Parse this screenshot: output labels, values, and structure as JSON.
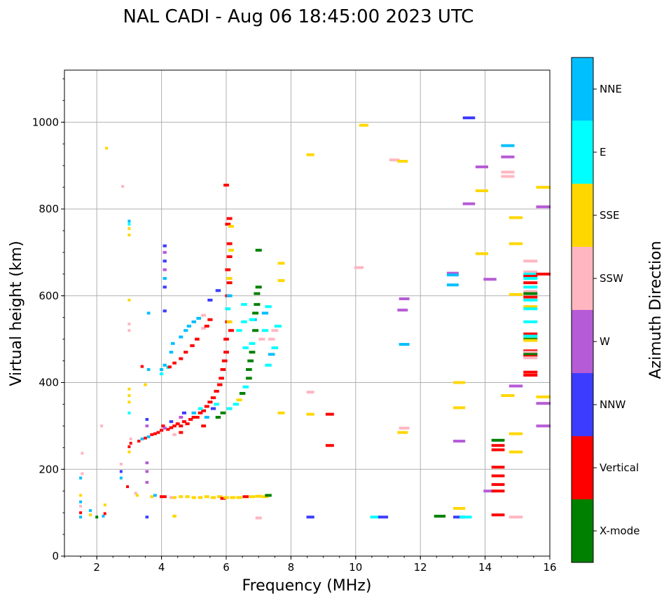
{
  "chart_data": {
    "type": "scatter",
    "title": "NAL CADI - Aug 06 18:45:00 2023 UTC",
    "xlabel": "Frequency (MHz)",
    "ylabel": "Virtual height (km)",
    "xlim": [
      1,
      16
    ],
    "ylim": [
      0,
      1120
    ],
    "xticks": [
      2,
      4,
      6,
      8,
      10,
      12,
      14,
      16
    ],
    "yticks": [
      0,
      200,
      400,
      600,
      800,
      1000
    ],
    "grid": true,
    "colorbar": {
      "label": "Azimuth Direction",
      "position": "right",
      "categories": [
        {
          "code": "X",
          "name": "X-mode",
          "color": "#008000"
        },
        {
          "code": "V",
          "name": "Vertical",
          "color": "#ff0000"
        },
        {
          "code": "N",
          "name": "NNW",
          "color": "#3c3cff"
        },
        {
          "code": "W",
          "name": "W",
          "color": "#b65bd6"
        },
        {
          "code": "P",
          "name": "SSW",
          "color": "#ffb6c1"
        },
        {
          "code": "S",
          "name": "SSE",
          "color": "#ffd700"
        },
        {
          "code": "E",
          "name": "E",
          "color": "#00ffff"
        },
        {
          "code": "D",
          "name": "NNE",
          "color": "#00bfff"
        }
      ]
    },
    "points_format": "[frequency_MHz, virtual_height_km, direction_code]",
    "points": [
      [
        1.5,
        90,
        "D"
      ],
      [
        1.5,
        100,
        "V"
      ],
      [
        1.5,
        115,
        "P"
      ],
      [
        1.5,
        125,
        "D"
      ],
      [
        1.5,
        140,
        "S"
      ],
      [
        1.5,
        180,
        "D"
      ],
      [
        1.55,
        190,
        "P"
      ],
      [
        1.55,
        237,
        "P"
      ],
      [
        1.8,
        95,
        "S"
      ],
      [
        1.8,
        105,
        "D"
      ],
      [
        2.0,
        90,
        "X"
      ],
      [
        2.2,
        92,
        "D"
      ],
      [
        2.25,
        98,
        "V"
      ],
      [
        2.25,
        118,
        "S"
      ],
      [
        2.15,
        300,
        "P"
      ],
      [
        2.3,
        940,
        "S"
      ],
      [
        2.8,
        852,
        "P"
      ],
      [
        2.75,
        180,
        "D"
      ],
      [
        2.75,
        195,
        "N"
      ],
      [
        2.75,
        212,
        "P"
      ],
      [
        2.95,
        160,
        "V"
      ],
      [
        3.0,
        240,
        "S"
      ],
      [
        3.0,
        252,
        "V"
      ],
      [
        3.05,
        260,
        "V"
      ],
      [
        3.05,
        270,
        "P"
      ],
      [
        3.0,
        330,
        "E"
      ],
      [
        3.0,
        355,
        "S"
      ],
      [
        3.0,
        370,
        "S"
      ],
      [
        3.0,
        385,
        "S"
      ],
      [
        3.0,
        520,
        "P"
      ],
      [
        3.0,
        535,
        "P"
      ],
      [
        3.0,
        590,
        "S"
      ],
      [
        3.0,
        740,
        "S"
      ],
      [
        3.0,
        755,
        "S"
      ],
      [
        3.0,
        765,
        "E"
      ],
      [
        3.0,
        772,
        "D"
      ],
      [
        3.2,
        145,
        "P"
      ],
      [
        3.25,
        140,
        "S"
      ],
      [
        3.4,
        437,
        "V"
      ],
      [
        3.5,
        395,
        "S"
      ],
      [
        3.6,
        430,
        "D"
      ],
      [
        3.6,
        560,
        "D"
      ],
      [
        3.55,
        315,
        "N"
      ],
      [
        3.55,
        300,
        "W"
      ],
      [
        3.55,
        90,
        "N"
      ],
      [
        3.55,
        170,
        "W"
      ],
      [
        3.55,
        195,
        "W"
      ],
      [
        3.55,
        215,
        "W"
      ],
      [
        3.3,
        265,
        "V"
      ],
      [
        3.4,
        270,
        "D"
      ],
      [
        3.5,
        272,
        "V"
      ],
      [
        3.6,
        275,
        "D"
      ],
      [
        3.7,
        280,
        "V"
      ],
      [
        3.8,
        282,
        "V"
      ],
      [
        3.9,
        285,
        "V"
      ],
      [
        4.0,
        290,
        "V"
      ],
      [
        4.05,
        300,
        "V"
      ],
      [
        4.2,
        292,
        "V"
      ],
      [
        4.3,
        296,
        "V"
      ],
      [
        4.4,
        300,
        "V"
      ],
      [
        4.5,
        305,
        "V"
      ],
      [
        4.6,
        300,
        "V"
      ],
      [
        4.7,
        310,
        "V"
      ],
      [
        4.8,
        305,
        "V"
      ],
      [
        4.9,
        315,
        "V"
      ],
      [
        5.0,
        320,
        "V"
      ],
      [
        5.1,
        320,
        "V"
      ],
      [
        5.2,
        330,
        "V"
      ],
      [
        5.3,
        335,
        "V"
      ],
      [
        5.4,
        345,
        "V"
      ],
      [
        5.5,
        355,
        "V"
      ],
      [
        5.6,
        365,
        "V"
      ],
      [
        5.7,
        380,
        "V"
      ],
      [
        5.8,
        395,
        "V"
      ],
      [
        5.85,
        410,
        "V"
      ],
      [
        5.9,
        430,
        "V"
      ],
      [
        5.95,
        450,
        "V"
      ],
      [
        4.1,
        295,
        "W"
      ],
      [
        4.3,
        310,
        "N"
      ],
      [
        4.6,
        320,
        "W"
      ],
      [
        4.7,
        330,
        "N"
      ],
      [
        5.0,
        330,
        "D"
      ],
      [
        5.2,
        340,
        "E"
      ],
      [
        5.4,
        320,
        "D"
      ],
      [
        5.6,
        340,
        "N"
      ],
      [
        5.7,
        350,
        "E"
      ],
      [
        4.4,
        280,
        "P"
      ],
      [
        4.6,
        285,
        "V"
      ],
      [
        5.3,
        300,
        "V"
      ],
      [
        6.0,
        470,
        "V"
      ],
      [
        6.0,
        500,
        "V"
      ],
      [
        6.05,
        540,
        "V"
      ],
      [
        6.05,
        570,
        "E"
      ],
      [
        6.05,
        600,
        "V"
      ],
      [
        6.1,
        630,
        "V"
      ],
      [
        6.05,
        660,
        "V"
      ],
      [
        6.1,
        690,
        "V"
      ],
      [
        6.1,
        720,
        "V"
      ],
      [
        6.05,
        765,
        "V"
      ],
      [
        6.1,
        778,
        "V"
      ],
      [
        6.15,
        760,
        "S"
      ],
      [
        6.15,
        705,
        "S"
      ],
      [
        6.1,
        600,
        "D"
      ],
      [
        6.1,
        640,
        "S"
      ],
      [
        6.0,
        855,
        "V"
      ],
      [
        6.1,
        540,
        "S"
      ],
      [
        6.15,
        520,
        "V"
      ],
      [
        5.75,
        320,
        "X"
      ],
      [
        5.9,
        330,
        "X"
      ],
      [
        6.1,
        340,
        "E"
      ],
      [
        6.3,
        350,
        "E"
      ],
      [
        6.4,
        360,
        "S"
      ],
      [
        6.5,
        375,
        "X"
      ],
      [
        6.6,
        390,
        "E"
      ],
      [
        6.7,
        410,
        "X"
      ],
      [
        6.7,
        430,
        "X"
      ],
      [
        6.75,
        450,
        "X"
      ],
      [
        6.8,
        470,
        "X"
      ],
      [
        6.8,
        490,
        "E"
      ],
      [
        6.9,
        520,
        "X"
      ],
      [
        6.85,
        545,
        "D"
      ],
      [
        6.9,
        560,
        "X"
      ],
      [
        6.95,
        580,
        "X"
      ],
      [
        6.95,
        605,
        "X"
      ],
      [
        7.0,
        620,
        "X"
      ],
      [
        7.0,
        705,
        "X"
      ],
      [
        6.6,
        480,
        "E"
      ],
      [
        6.55,
        540,
        "E"
      ],
      [
        6.8,
        545,
        "E"
      ],
      [
        6.55,
        580,
        "E"
      ],
      [
        6.4,
        520,
        "E"
      ],
      [
        7.2,
        560,
        "D"
      ],
      [
        7.3,
        575,
        "E"
      ],
      [
        7.5,
        520,
        "P"
      ],
      [
        7.4,
        500,
        "P"
      ],
      [
        7.5,
        480,
        "E"
      ],
      [
        7.6,
        530,
        "E"
      ],
      [
        7.3,
        440,
        "E"
      ],
      [
        7.4,
        465,
        "D"
      ],
      [
        7.1,
        500,
        "P"
      ],
      [
        7.7,
        675,
        "S"
      ],
      [
        7.7,
        635,
        "S"
      ],
      [
        7.7,
        330,
        "S"
      ],
      [
        7.2,
        520,
        "E"
      ],
      [
        4.0,
        430,
        "D"
      ],
      [
        4.1,
        440,
        "D"
      ],
      [
        4.3,
        470,
        "D"
      ],
      [
        4.35,
        490,
        "D"
      ],
      [
        4.6,
        505,
        "D"
      ],
      [
        4.75,
        520,
        "D"
      ],
      [
        4.85,
        530,
        "D"
      ],
      [
        5.0,
        540,
        "D"
      ],
      [
        5.15,
        548,
        "D"
      ],
      [
        5.3,
        555,
        "P"
      ],
      [
        4.0,
        420,
        "E"
      ],
      [
        4.2,
        435,
        "E"
      ],
      [
        4.25,
        436,
        "V"
      ],
      [
        4.4,
        445,
        "V"
      ],
      [
        4.6,
        455,
        "V"
      ],
      [
        4.75,
        470,
        "V"
      ],
      [
        4.95,
        485,
        "V"
      ],
      [
        5.1,
        500,
        "V"
      ],
      [
        5.3,
        525,
        "P"
      ],
      [
        5.4,
        530,
        "V"
      ],
      [
        5.5,
        545,
        "V"
      ],
      [
        4.1,
        620,
        "N"
      ],
      [
        4.1,
        640,
        "D"
      ],
      [
        4.1,
        660,
        "W"
      ],
      [
        4.1,
        680,
        "N"
      ],
      [
        4.1,
        700,
        "W"
      ],
      [
        4.1,
        715,
        "N"
      ],
      [
        4.1,
        565,
        "N"
      ],
      [
        5.5,
        590,
        "N"
      ],
      [
        5.75,
        612,
        "N"
      ],
      [
        3.7,
        137,
        "S"
      ],
      [
        3.8,
        140,
        "D"
      ],
      [
        4.0,
        137,
        "V"
      ],
      [
        4.1,
        137,
        "V"
      ],
      [
        4.3,
        135,
        "P"
      ],
      [
        4.4,
        135,
        "S"
      ],
      [
        4.6,
        137,
        "S"
      ],
      [
        4.8,
        137,
        "S"
      ],
      [
        5.0,
        135,
        "S"
      ],
      [
        5.2,
        135,
        "S"
      ],
      [
        5.4,
        137,
        "S"
      ],
      [
        5.6,
        135,
        "S"
      ],
      [
        5.8,
        137,
        "S"
      ],
      [
        5.9,
        133,
        "V"
      ],
      [
        6.0,
        135,
        "S"
      ],
      [
        6.2,
        135,
        "S"
      ],
      [
        6.4,
        135,
        "S"
      ],
      [
        6.6,
        137,
        "V"
      ],
      [
        6.8,
        137,
        "S"
      ],
      [
        7.0,
        138,
        "S"
      ],
      [
        7.2,
        137,
        "S"
      ],
      [
        7.3,
        140,
        "X"
      ],
      [
        4.4,
        92,
        "S"
      ],
      [
        7.0,
        88,
        "P"
      ],
      [
        8.6,
        925,
        "S"
      ],
      [
        8.6,
        378,
        "P"
      ],
      [
        8.6,
        327,
        "S"
      ],
      [
        8.6,
        90,
        "N"
      ],
      [
        9.2,
        255,
        "V"
      ],
      [
        9.2,
        327,
        "V"
      ],
      [
        10.1,
        665,
        "P"
      ],
      [
        10.25,
        993,
        "S"
      ],
      [
        10.6,
        90,
        "E"
      ],
      [
        10.85,
        90,
        "N"
      ],
      [
        11.2,
        913,
        "P"
      ],
      [
        11.45,
        910,
        "S"
      ],
      [
        11.45,
        567,
        "W"
      ],
      [
        11.5,
        593,
        "W"
      ],
      [
        11.5,
        488,
        "D"
      ],
      [
        11.45,
        285,
        "S"
      ],
      [
        11.5,
        295,
        "P"
      ],
      [
        12.6,
        92,
        "X"
      ],
      [
        13.0,
        652,
        "W"
      ],
      [
        13.0,
        648,
        "D"
      ],
      [
        13.0,
        625,
        "D"
      ],
      [
        13.2,
        400,
        "S"
      ],
      [
        13.2,
        342,
        "S"
      ],
      [
        13.2,
        265,
        "W"
      ],
      [
        13.2,
        110,
        "S"
      ],
      [
        13.2,
        90,
        "N"
      ],
      [
        13.4,
        90,
        "E"
      ],
      [
        13.5,
        1010,
        "N"
      ],
      [
        13.5,
        812,
        "W"
      ],
      [
        13.9,
        897,
        "W"
      ],
      [
        13.9,
        842,
        "S"
      ],
      [
        13.9,
        697,
        "S"
      ],
      [
        14.15,
        638,
        "W"
      ],
      [
        14.15,
        150,
        "W"
      ],
      [
        14.4,
        267,
        "X"
      ],
      [
        14.4,
        255,
        "V"
      ],
      [
        14.4,
        245,
        "V"
      ],
      [
        14.4,
        205,
        "V"
      ],
      [
        14.4,
        185,
        "V"
      ],
      [
        14.4,
        165,
        "V"
      ],
      [
        14.4,
        150,
        "V"
      ],
      [
        14.4,
        95,
        "V"
      ],
      [
        14.7,
        946,
        "D"
      ],
      [
        14.7,
        920,
        "W"
      ],
      [
        14.7,
        885,
        "P"
      ],
      [
        14.7,
        875,
        "P"
      ],
      [
        14.7,
        370,
        "S"
      ],
      [
        14.95,
        780,
        "S"
      ],
      [
        14.95,
        720,
        "S"
      ],
      [
        14.95,
        603,
        "S"
      ],
      [
        14.95,
        392,
        "W"
      ],
      [
        14.95,
        282,
        "S"
      ],
      [
        14.95,
        240,
        "S"
      ],
      [
        14.95,
        90,
        "P"
      ],
      [
        15.4,
        680,
        "P"
      ],
      [
        15.4,
        655,
        "P"
      ],
      [
        15.4,
        650,
        "E"
      ],
      [
        15.4,
        645,
        "V"
      ],
      [
        15.4,
        640,
        "E"
      ],
      [
        15.4,
        630,
        "V"
      ],
      [
        15.4,
        620,
        "E"
      ],
      [
        15.4,
        610,
        "P"
      ],
      [
        15.4,
        605,
        "X"
      ],
      [
        15.4,
        597,
        "V"
      ],
      [
        15.4,
        590,
        "E"
      ],
      [
        15.4,
        575,
        "S"
      ],
      [
        15.4,
        570,
        "E"
      ],
      [
        15.4,
        540,
        "E"
      ],
      [
        15.4,
        512,
        "V"
      ],
      [
        15.4,
        507,
        "E"
      ],
      [
        15.4,
        500,
        "X"
      ],
      [
        15.4,
        497,
        "S"
      ],
      [
        15.4,
        473,
        "V"
      ],
      [
        15.4,
        470,
        "P"
      ],
      [
        15.4,
        465,
        "X"
      ],
      [
        15.4,
        460,
        "V"
      ],
      [
        15.4,
        457,
        "P"
      ],
      [
        15.4,
        424,
        "V"
      ],
      [
        15.4,
        417,
        "V"
      ],
      [
        15.8,
        650,
        "V"
      ],
      [
        15.8,
        850,
        "S"
      ],
      [
        15.8,
        805,
        "W"
      ],
      [
        15.8,
        367,
        "S"
      ],
      [
        15.8,
        352,
        "W"
      ],
      [
        15.8,
        300,
        "W"
      ]
    ]
  }
}
